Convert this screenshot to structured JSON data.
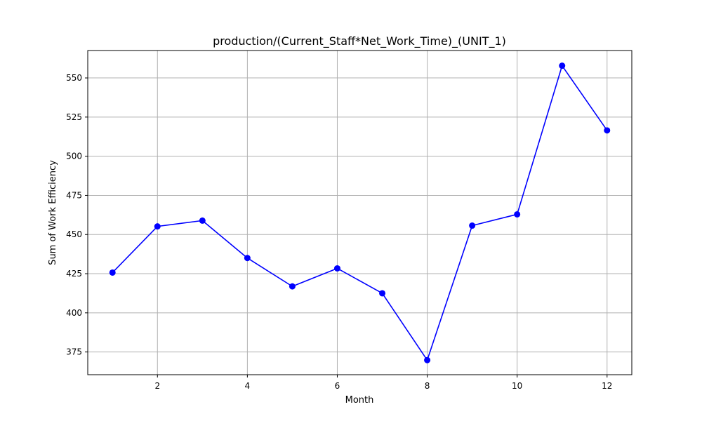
{
  "chart_data": {
    "type": "line",
    "title": "production/(Current_Staff*Net_Work_Time)_(UNIT_1)",
    "xlabel": "Month",
    "ylabel": "Sum of Work Efficiency",
    "x": [
      1,
      2,
      3,
      4,
      5,
      6,
      7,
      8,
      9,
      10,
      11,
      12
    ],
    "series": [
      {
        "values": [
          425.7,
          455.2,
          458.9,
          435.0,
          416.9,
          428.4,
          412.5,
          369.8,
          455.7,
          462.9,
          557.8,
          516.5
        ],
        "color": "#0000ff",
        "marker": "circle"
      }
    ],
    "xlim": [
      0.45,
      12.55
    ],
    "ylim": [
      360.5,
      567.5
    ],
    "xticks": [
      2,
      4,
      6,
      8,
      10,
      12
    ],
    "xtick_labels": [
      "2",
      "4",
      "6",
      "8",
      "10",
      "12"
    ],
    "yticks": [
      375,
      400,
      425,
      450,
      475,
      500,
      525,
      550
    ],
    "ytick_labels": [
      "375",
      "400",
      "425",
      "450",
      "475",
      "500",
      "525",
      "550"
    ],
    "grid": true,
    "legend": "none"
  }
}
